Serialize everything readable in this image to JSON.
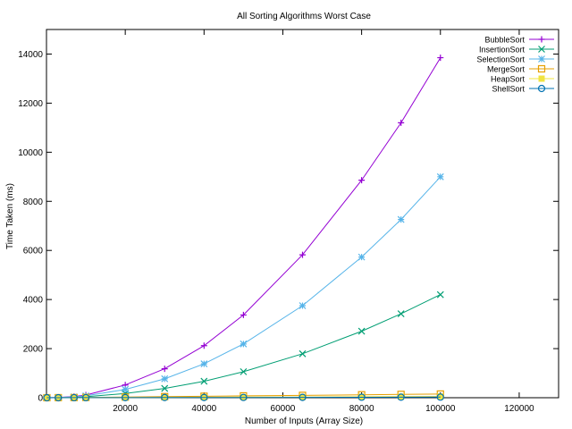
{
  "chart_data": {
    "type": "line",
    "title": "All Sorting Algorithms Worst Case",
    "xlabel": "Number of Inputs (Array Size)",
    "ylabel": "Time Taken (ms)",
    "xlim": [
      0,
      130000
    ],
    "ylim": [
      0,
      15000
    ],
    "xticks": [
      20000,
      40000,
      60000,
      80000,
      100000,
      120000
    ],
    "yticks": [
      0,
      2000,
      4000,
      6000,
      8000,
      10000,
      12000,
      14000
    ],
    "grid": false,
    "legend_position": "top-right",
    "x": [
      100,
      3000,
      7000,
      10000,
      20000,
      30000,
      40000,
      50000,
      65000,
      80000,
      90000,
      100000
    ],
    "series": [
      {
        "name": "BubbleSort",
        "color": "#9400d3",
        "marker": "plus",
        "values": [
          0,
          10,
          50,
          110,
          520,
          1180,
          2120,
          3370,
          5820,
          8860,
          11200,
          13850
        ]
      },
      {
        "name": "InsertionSort",
        "color": "#009e73",
        "marker": "cross",
        "values": [
          0,
          5,
          20,
          40,
          170,
          380,
          670,
          1060,
          1790,
          2710,
          3420,
          4200
        ]
      },
      {
        "name": "SelectionSort",
        "color": "#56b4e9",
        "marker": "star",
        "values": [
          0,
          8,
          35,
          75,
          340,
          770,
          1380,
          2190,
          3750,
          5730,
          7260,
          9000
        ]
      },
      {
        "name": "MergeSort",
        "color": "#e69f00",
        "marker": "square",
        "values": [
          0,
          2,
          5,
          10,
          25,
          45,
          60,
          75,
          95,
          120,
          135,
          150
        ]
      },
      {
        "name": "HeapSort",
        "color": "#f0e442",
        "marker": "filled-square",
        "values": [
          0,
          1,
          3,
          5,
          10,
          15,
          20,
          25,
          30,
          40,
          45,
          50
        ]
      },
      {
        "name": "ShellSort",
        "color": "#0072b2",
        "marker": "circle",
        "values": [
          0,
          1,
          2,
          3,
          5,
          8,
          10,
          12,
          15,
          20,
          22,
          25
        ]
      }
    ]
  }
}
